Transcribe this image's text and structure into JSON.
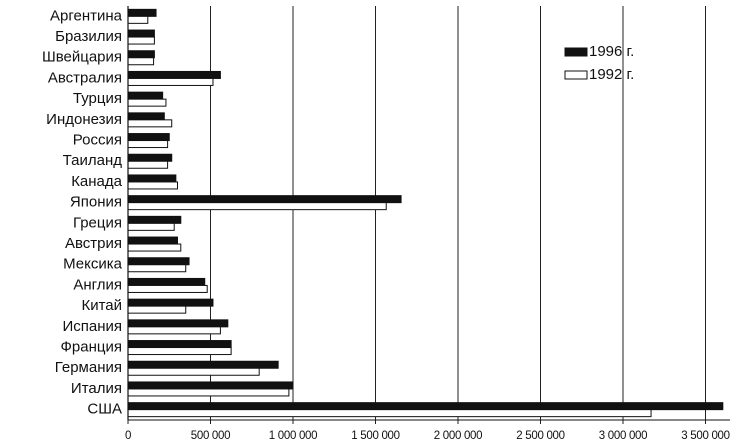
{
  "chart_data": {
    "type": "barh",
    "categories": [
      "Аргентина",
      "Бразилия",
      "Швейцария",
      "Австралия",
      "Турция",
      "Индонезия",
      "Россия",
      "Таиланд",
      "Канада",
      "Япония",
      "Греция",
      "Австрия",
      "Мексика",
      "Англия",
      "Китай",
      "Испания",
      "Франция",
      "Германия",
      "Италия",
      "США"
    ],
    "series": [
      {
        "name": "1996 г.",
        "color": "#111111",
        "values": [
          170000,
          160000,
          160000,
          560000,
          210000,
          220000,
          250000,
          265000,
          290000,
          1655000,
          320000,
          300000,
          370000,
          465000,
          515000,
          605000,
          625000,
          910000,
          1000000,
          3605000
        ]
      },
      {
        "name": "1992 г.",
        "color": "#ffffff",
        "values": [
          120000,
          160000,
          155000,
          515000,
          230000,
          265000,
          240000,
          240000,
          300000,
          1565000,
          280000,
          320000,
          350000,
          480000,
          350000,
          560000,
          625000,
          795000,
          975000,
          3170000
        ]
      }
    ],
    "xlim": [
      0,
      3600000
    ],
    "xticks": [
      0,
      {
        "value": 500000,
        "label": "500 000"
      },
      {
        "value": 1000000,
        "label": "1 000 000"
      },
      {
        "value": 1500000,
        "label": "1 500 000"
      },
      {
        "value": 2000000,
        "label": "2 000 000"
      },
      {
        "value": 2500000,
        "label": "2 500 000"
      },
      {
        "value": 3000000,
        "label": "3 000 000"
      },
      {
        "value": 3500000,
        "label": "3 500 000"
      }
    ],
    "grid": true,
    "legend": "upper right"
  }
}
